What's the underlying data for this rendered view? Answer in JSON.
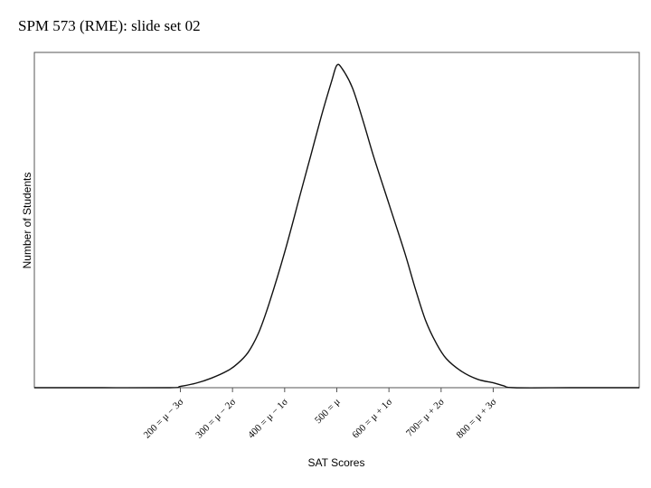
{
  "header": {
    "title": "SPM 573 (RME): slide set 02"
  },
  "chart_data": {
    "type": "line",
    "title": "",
    "xlabel": "SAT Scores",
    "ylabel": "Number of Students",
    "xlim": [
      -80,
      1080
    ],
    "ylim": [
      0,
      1.04
    ],
    "grid": false,
    "legend": "none",
    "line_color": "#111111",
    "tick_values": [
      200,
      300,
      400,
      500,
      600,
      700,
      800
    ],
    "tick_labels": [
      "200 = μ − 3σ",
      "300 = μ − 2σ",
      "400 = μ − 1σ",
      "500 = μ",
      "600 = μ + 1σ",
      "700= μ + 2σ",
      "800 = μ + 3σ"
    ],
    "series": [
      {
        "x": [
          -80,
          50,
          180,
          200,
          230,
          260,
          290,
          310,
          330,
          350,
          370,
          400,
          430,
          450,
          470,
          490,
          500,
          510,
          530,
          550,
          570,
          600,
          630,
          650,
          670,
          690,
          710,
          740,
          770,
          800,
          820,
          840,
          950,
          1080
        ],
        "y": [
          0,
          0,
          0,
          0.004,
          0.014,
          0.03,
          0.052,
          0.075,
          0.11,
          0.17,
          0.26,
          0.42,
          0.6,
          0.72,
          0.84,
          0.95,
          1.0,
          0.99,
          0.93,
          0.83,
          0.72,
          0.57,
          0.42,
          0.31,
          0.21,
          0.14,
          0.09,
          0.05,
          0.026,
          0.015,
          0.006,
          0,
          0,
          0
        ]
      }
    ]
  }
}
